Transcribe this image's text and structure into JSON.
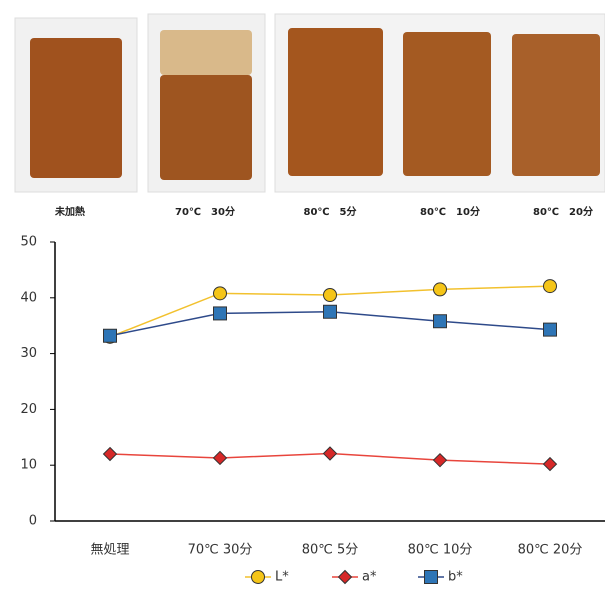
{
  "photos": {
    "captions": [
      "未加熱",
      "70℃　30分",
      "80℃　5分",
      "80℃　10分",
      "80℃　20分"
    ]
  },
  "chart_data": {
    "type": "line",
    "categories": [
      "無処理",
      "70℃ 30分",
      "80℃ 5分",
      "80℃ 10分",
      "80℃ 20分"
    ],
    "series": [
      {
        "name": "L*",
        "color": "#f2c12e",
        "marker": "circle",
        "marker_color": "#f5c518",
        "values": [
          33,
          40.8,
          40.5,
          41.5,
          42.1
        ]
      },
      {
        "name": "a*",
        "color": "#e8453c",
        "marker": "diamond",
        "marker_color": "#d62828",
        "values": [
          12,
          11.3,
          12.1,
          10.9,
          10.2
        ]
      },
      {
        "name": "b*",
        "color": "#2e4a8a",
        "marker": "square",
        "marker_color": "#2e75b6",
        "values": [
          33.2,
          37.2,
          37.5,
          35.8,
          34.3
        ]
      }
    ],
    "ylim": [
      0,
      50
    ],
    "yticks": [
      0,
      10,
      20,
      30,
      40,
      50
    ],
    "grid": false,
    "legend": "bottom"
  }
}
